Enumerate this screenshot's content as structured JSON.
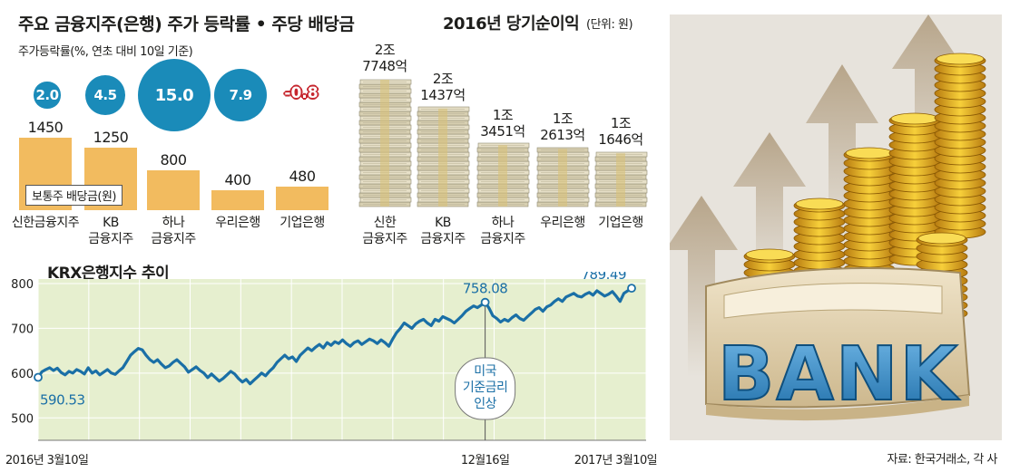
{
  "chart_data": [
    {
      "type": "bubble",
      "title": "주요 금융지주(은행) 주가 등락률 • 주당 배당금",
      "subtitle": "주가등락률(%, 연초 대비 10일 기준)",
      "categories": [
        "신한금융지주",
        "KB 금융지주",
        "하나 금융지주",
        "우리은행",
        "기업은행"
      ],
      "values": [
        2.0,
        4.5,
        15.0,
        7.9,
        -0.8
      ],
      "labels": [
        "2.0",
        "4.5",
        "15.0",
        "7.9",
        "-0.8"
      ],
      "colors": {
        "positive": "#1a8bb9",
        "negative": "#c6262e"
      }
    },
    {
      "type": "bar",
      "legend": "보통주 배당금(원)",
      "categories": [
        "신한금융지주",
        "KB 금융지주",
        "하나 금융지주",
        "우리은행",
        "기업은행"
      ],
      "category_lines": [
        [
          "신한금융지주"
        ],
        [
          "KB",
          "금융지주"
        ],
        [
          "하나",
          "금융지주"
        ],
        [
          "우리은행"
        ],
        [
          "기업은행"
        ]
      ],
      "values": [
        1450,
        1250,
        800,
        400,
        480
      ],
      "labels": [
        "1450",
        "1250",
        "800",
        "400",
        "480"
      ],
      "color": "#f2bb5f"
    },
    {
      "type": "bar",
      "title": "2016년 당기순이익",
      "unit_note": "(단위: 원)",
      "categories": [
        "신한 금융지주",
        "KB 금융지주",
        "하나 금융지주",
        "우리은행",
        "기업은행"
      ],
      "category_lines": [
        [
          "신한",
          "금융지주"
        ],
        [
          "KB",
          "금융지주"
        ],
        [
          "하나",
          "금융지주"
        ],
        [
          "우리은행"
        ],
        [
          "기업은행"
        ]
      ],
      "values": [
        27748,
        21437,
        13451,
        12613,
        11646
      ],
      "labels": [
        [
          "2조",
          "7748억"
        ],
        [
          "2조",
          "1437억"
        ],
        [
          "1조",
          "3451억"
        ],
        [
          "1조",
          "2613억"
        ],
        [
          "1조",
          "1646억"
        ]
      ]
    },
    {
      "type": "line",
      "title": "KRX은행지수 추이",
      "x_start": "2016-03-10",
      "x_end": "2017-03-10",
      "x_tick_labels": [
        "2016년 3월10일",
        "12월16일",
        "2017년 3월10일"
      ],
      "y_ticks": [
        500,
        600,
        700,
        800
      ],
      "ylim": [
        450,
        810
      ],
      "grid": true,
      "series": [
        {
          "values": [
            590.53,
            603,
            608,
            612,
            606,
            611,
            601,
            596,
            604,
            600,
            608,
            604,
            598,
            612,
            600,
            605,
            596,
            602,
            608,
            600,
            597,
            605,
            612,
            626,
            640,
            648,
            655,
            652,
            640,
            630,
            624,
            630,
            620,
            612,
            616,
            624,
            630,
            622,
            614,
            602,
            608,
            614,
            606,
            600,
            590,
            598,
            590,
            582,
            588,
            596,
            604,
            598,
            588,
            580,
            586,
            576,
            584,
            592,
            600,
            594,
            604,
            612,
            624,
            632,
            640,
            632,
            636,
            626,
            640,
            648,
            656,
            650,
            658,
            664,
            656,
            668,
            662,
            670,
            666,
            674,
            666,
            660,
            668,
            672,
            664,
            670,
            676,
            672,
            666,
            674,
            668,
            660,
            676,
            690,
            700,
            712,
            706,
            700,
            710,
            716,
            720,
            712,
            706,
            720,
            716,
            726,
            722,
            718,
            712,
            720,
            728,
            738,
            744,
            750,
            746,
            752,
            758.08,
            745,
            728,
            722,
            714,
            720,
            716,
            724,
            730,
            722,
            718,
            726,
            734,
            742,
            746,
            738,
            748,
            752,
            760,
            766,
            760,
            770,
            774,
            778,
            772,
            770,
            776,
            780,
            774,
            784,
            778,
            772,
            776,
            782,
            772,
            760,
            778,
            784,
            789.49
          ]
        }
      ],
      "annotations": [
        {
          "label": "590.53"
        },
        {
          "label": "758.08",
          "note": [
            "미국",
            "기준금리",
            "인상"
          ]
        },
        {
          "label": "789.49"
        }
      ]
    }
  ],
  "source": "자료: 한국거래소, 각 사",
  "image": {
    "text": "BANK"
  }
}
